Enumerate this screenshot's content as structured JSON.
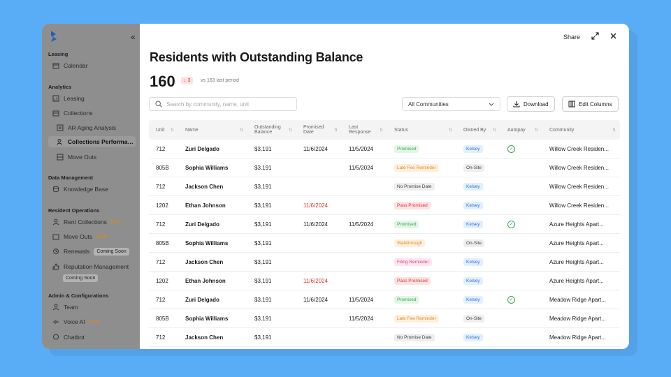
{
  "sidebar": {
    "sections": {
      "leasing": "Leasing",
      "analytics": "Analytics",
      "data_management": "Data Management",
      "resident_operations": "Resident Operations",
      "admin": "Admin & Configurations"
    },
    "items": {
      "calendar": "Calendar",
      "leasing": "Leasing",
      "collections": "Collections",
      "ar_aging": "AR Aging Analysis",
      "collections_perf": "Collections Performan...",
      "move_outs": "Move Outs",
      "knowledge_base": "Knowledge Base",
      "rent_collections": "Rent Collections",
      "move_outs_ops": "Move Outs",
      "renewals": "Renewals",
      "reputation": "Reputation Management",
      "team": "Team",
      "voice_ai": "Voice AI",
      "chatbot": "Chatbot"
    },
    "badges": {
      "beta": "Beta",
      "coming_soon": "Coming Soon"
    }
  },
  "header": {
    "share": "Share"
  },
  "page": {
    "title": "Residents with Outstanding Balance",
    "count": "160",
    "delta": "↓ 3",
    "comparison": "vs 163 last period"
  },
  "toolbar": {
    "search_placeholder": "Search by community, name, unit",
    "community_select": "All Communities",
    "download": "Download",
    "edit_columns": "Edit Columns"
  },
  "table": {
    "columns": {
      "unit": "Unit",
      "name": "Name",
      "balance_1": "Outstanding",
      "balance_2": "Balance",
      "promised_1": "Promised",
      "promised_2": "Date",
      "last_1": "Last",
      "last_2": "Response",
      "status": "Status",
      "owned_by": "Owned By",
      "autopay": "Autopay",
      "community": "Community"
    },
    "rows": [
      {
        "unit": "712",
        "name": "Zuri Delgado",
        "balance": "$3,191",
        "promised": "11/6/2024",
        "promised_overdue": false,
        "last": "11/5/2024",
        "status": "Promised",
        "status_style": "green",
        "owner": "Kelsey",
        "owner_style": "blue",
        "autopay": true,
        "community": "Willow Creek Residen..."
      },
      {
        "unit": "805B",
        "name": "Sophia Williams",
        "balance": "$3,191",
        "promised": "",
        "promised_overdue": false,
        "last": "11/5/2024",
        "status": "Late Fee Reminder",
        "status_style": "orange",
        "owner": "On-Site",
        "owner_style": "gray",
        "autopay": false,
        "community": "Willow Creek Residen..."
      },
      {
        "unit": "712",
        "name": "Jackson Chen",
        "balance": "$3,191",
        "promised": "",
        "promised_overdue": false,
        "last": "",
        "status": "No Promise Date",
        "status_style": "gray",
        "owner": "Kelsey",
        "owner_style": "blue",
        "autopay": false,
        "community": "Willow Creek Residen..."
      },
      {
        "unit": "1202",
        "name": "Ethan Johnson",
        "balance": "$3,191",
        "promised": "11/6/2024",
        "promised_overdue": true,
        "last": "",
        "status": "Pass Promised",
        "status_style": "red",
        "owner": "Kelsey",
        "owner_style": "blue",
        "autopay": false,
        "community": "Willow Creek Residen..."
      },
      {
        "unit": "712",
        "name": "Zuri Delgado",
        "balance": "$3,191",
        "promised": "11/6/2024",
        "promised_overdue": false,
        "last": "11/5/2024",
        "status": "Promised",
        "status_style": "green",
        "owner": "Kelsey",
        "owner_style": "blue",
        "autopay": true,
        "community": "Azure Heights Apart..."
      },
      {
        "unit": "805B",
        "name": "Sophia Williams",
        "balance": "$3,191",
        "promised": "",
        "promised_overdue": false,
        "last": "",
        "status": "Walkthrough",
        "status_style": "orange",
        "owner": "On-Site",
        "owner_style": "gray",
        "autopay": false,
        "community": "Azure Heights Apart..."
      },
      {
        "unit": "712",
        "name": "Jackson Chen",
        "balance": "$3,191",
        "promised": "",
        "promised_overdue": false,
        "last": "",
        "status": "Filing Reminder",
        "status_style": "pink",
        "owner": "Kelsey",
        "owner_style": "blue",
        "autopay": false,
        "community": "Azure Heights Apart..."
      },
      {
        "unit": "1202",
        "name": "Ethan Johnson",
        "balance": "$3,191",
        "promised": "11/6/2024",
        "promised_overdue": true,
        "last": "",
        "status": "Pass Promised",
        "status_style": "red",
        "owner": "Kelsey",
        "owner_style": "blue",
        "autopay": false,
        "community": "Azure Heights Apart..."
      },
      {
        "unit": "712",
        "name": "Zuri Delgado",
        "balance": "$3,191",
        "promised": "11/6/2024",
        "promised_overdue": false,
        "last": "11/5/2024",
        "status": "Promised",
        "status_style": "green",
        "owner": "Kelsey",
        "owner_style": "blue",
        "autopay": true,
        "community": "Meadow Ridge Apart..."
      },
      {
        "unit": "805B",
        "name": "Sophia Williams",
        "balance": "$3,191",
        "promised": "",
        "promised_overdue": false,
        "last": "11/5/2024",
        "status": "Late Fee Reminder",
        "status_style": "orange",
        "owner": "On-Site",
        "owner_style": "gray",
        "autopay": false,
        "community": "Meadow Ridge Apart..."
      },
      {
        "unit": "712",
        "name": "Jackson Chen",
        "balance": "$3,191",
        "promised": "",
        "promised_overdue": false,
        "last": "",
        "status": "No Promise Date",
        "status_style": "gray",
        "owner": "Kelsey",
        "owner_style": "blue",
        "autopay": false,
        "community": "Meadow Ridge Apart..."
      }
    ]
  },
  "colors": {
    "background": "#59adf6",
    "accent_blue": "#2c73d6",
    "overdue_red": "#e0302a"
  },
  "icons": [
    "logo-icon",
    "collapse-icon",
    "calendar-icon",
    "chart-icon",
    "stack-icon",
    "doc-icon",
    "people-icon",
    "box-icon",
    "wallet-icon",
    "renew-icon",
    "thumb-icon",
    "team-icon",
    "voice-icon",
    "chat-icon",
    "expand-icon",
    "close-icon",
    "search-icon",
    "chevron-down-icon",
    "download-icon",
    "columns-icon",
    "check-icon"
  ]
}
